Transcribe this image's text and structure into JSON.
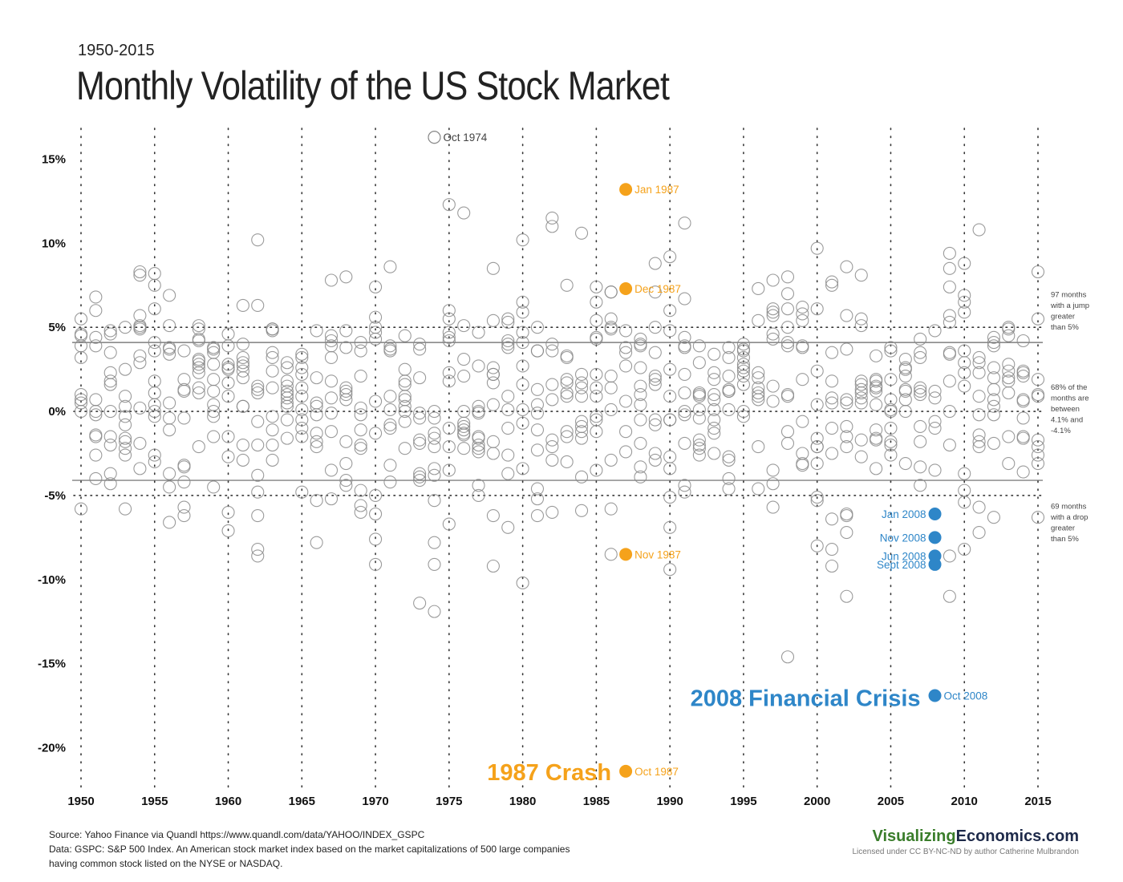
{
  "header": {
    "subtitle": "1950-2015",
    "title": "Monthly Volatility of the US Stock Market"
  },
  "chart_data": {
    "type": "scatter",
    "title": "Monthly Volatility of the US Stock Market",
    "subtitle": "1950-2015",
    "xlim": [
      1950,
      2015
    ],
    "ylim": [
      -22.5,
      16.5
    ],
    "x_ticks": [
      {
        "value": 1950,
        "label": "1950"
      },
      {
        "value": 1955,
        "label": "1955"
      },
      {
        "value": 1960,
        "label": "1960"
      },
      {
        "value": 1965,
        "label": "1965"
      },
      {
        "value": 1970,
        "label": "1970"
      },
      {
        "value": 1975,
        "label": "1975"
      },
      {
        "value": 1980,
        "label": "1980"
      },
      {
        "value": 1985,
        "label": "1985"
      },
      {
        "value": 1990,
        "label": "1990"
      },
      {
        "value": 1995,
        "label": "1995"
      },
      {
        "value": 2000,
        "label": "2000"
      },
      {
        "value": 2005,
        "label": "2005"
      },
      {
        "value": 2010,
        "label": "2010"
      },
      {
        "value": 2015,
        "label": "2015"
      }
    ],
    "y_ticks": [
      {
        "value": 15,
        "label": "15%"
      },
      {
        "value": 10,
        "label": "10%"
      },
      {
        "value": 5,
        "label": "5%"
      },
      {
        "value": 0,
        "label": "0%"
      },
      {
        "value": -5,
        "label": "-5%"
      },
      {
        "value": -10,
        "label": "-10%"
      },
      {
        "value": -15,
        "label": "-15%"
      },
      {
        "value": -20,
        "label": "-20%"
      }
    ],
    "grid": {
      "vertical": "dotted",
      "horizontal_dotted": [
        5,
        0,
        -5
      ],
      "horizontal_solid": [
        4.1,
        -4.1
      ]
    },
    "colors": {
      "default": "#888888",
      "crash_1987": "#f5a21b",
      "crisis_2008": "#2e86c8",
      "axis_text": "#111111"
    },
    "band_notes": [
      {
        "y": 6.8,
        "lines": [
          "97 months",
          "with a jump",
          "greater",
          "than 5%"
        ]
      },
      {
        "y": 1.3,
        "lines": [
          "68% of the",
          "months are",
          "between",
          "4.1% and",
          "-4.1%"
        ]
      },
      {
        "y": -5.8,
        "lines": [
          "69 months",
          "with a drop",
          "greater",
          "than 5%"
        ]
      }
    ],
    "annotations": [
      {
        "text": "1987 Crash",
        "x": 1987,
        "y": -21.4,
        "color": "#f5a21b"
      },
      {
        "text": "2008 Financial Crisis",
        "x": 2008,
        "y": -17.0,
        "color": "#2e86c8"
      }
    ],
    "highlighted_points": [
      {
        "x": 1974,
        "y": 16.3,
        "label": "Oct 1974",
        "group": "default",
        "label_side": "right"
      },
      {
        "x": 1987,
        "y": 13.2,
        "label": "Jan 1987",
        "group": "crash_1987",
        "label_side": "right"
      },
      {
        "x": 1987,
        "y": 7.3,
        "label": "Dec 1987",
        "group": "crash_1987",
        "label_side": "right"
      },
      {
        "x": 1987,
        "y": -8.5,
        "label": "Nov 1987",
        "group": "crash_1987",
        "label_side": "right"
      },
      {
        "x": 1987,
        "y": -21.4,
        "label": "Oct 1987",
        "group": "crash_1987",
        "label_side": "right"
      },
      {
        "x": 2008,
        "y": -6.1,
        "label": "Jan 2008",
        "group": "crisis_2008",
        "label_side": "left"
      },
      {
        "x": 2008,
        "y": -7.5,
        "label": "Nov 2008",
        "group": "crisis_2008",
        "label_side": "left"
      },
      {
        "x": 2008,
        "y": -8.6,
        "label": "Jun 2008",
        "group": "crisis_2008",
        "label_side": "left"
      },
      {
        "x": 2008,
        "y": -9.1,
        "label": "Sept 2008",
        "group": "crisis_2008",
        "label_side": "left"
      },
      {
        "x": 2008,
        "y": -16.9,
        "label": "Oct 2008",
        "group": "crisis_2008",
        "label_side": "right"
      }
    ],
    "series": [
      {
        "x": 1950,
        "y": [
          5.5,
          4.5,
          3.9,
          3.2,
          1.0,
          0.5,
          0.0,
          -5.8,
          4.6,
          0.7
        ]
      },
      {
        "x": 1951,
        "y": [
          6.8,
          6.0,
          4.4,
          3.9,
          0.7,
          -0.2,
          -1.4,
          -1.5,
          -2.6,
          -4.0,
          0.0
        ]
      },
      {
        "x": 1952,
        "y": [
          4.8,
          4.6,
          3.5,
          2.3,
          1.8,
          0.0,
          -1.5,
          -2.0,
          -3.7,
          -4.3,
          1.6
        ]
      },
      {
        "x": 1953,
        "y": [
          5.0,
          2.5,
          0.9,
          0.3,
          -0.3,
          -0.8,
          -1.8,
          -2.2,
          -2.6,
          -5.8,
          -1.6
        ]
      },
      {
        "x": 1954,
        "y": [
          8.3,
          8.1,
          5.7,
          5.1,
          4.9,
          3.3,
          2.9,
          0.2,
          -1.9,
          -3.4,
          5.0
        ]
      },
      {
        "x": 1955,
        "y": [
          8.2,
          7.5,
          6.1,
          4.1,
          3.6,
          1.8,
          0.4,
          0.0,
          -0.3,
          -2.6,
          -3.0,
          1.1
        ]
      },
      {
        "x": 1956,
        "y": [
          6.9,
          5.1,
          3.7,
          3.4,
          0.5,
          -1.1,
          -3.7,
          -4.5,
          -6.6,
          3.8,
          -0.4
        ]
      },
      {
        "x": 1957,
        "y": [
          3.6,
          1.9,
          1.3,
          -0.4,
          -3.2,
          -3.3,
          -4.2,
          -5.7,
          -6.2,
          1.2
        ]
      },
      {
        "x": 1958,
        "y": [
          5.1,
          4.3,
          3.1,
          2.6,
          2.3,
          1.4,
          -2.1,
          4.9,
          4.2,
          2.8,
          3.0,
          1.1
        ]
      },
      {
        "x": 1959,
        "y": [
          3.8,
          3.5,
          2.8,
          1.9,
          1.2,
          0.4,
          0.0,
          -0.3,
          -1.5,
          -4.5,
          3.7
        ]
      },
      {
        "x": 1960,
        "y": [
          4.6,
          3.9,
          2.8,
          2.5,
          1.7,
          0.9,
          -1.5,
          -2.7,
          -6.0,
          -7.1,
          2.6
        ]
      },
      {
        "x": 1961,
        "y": [
          6.3,
          4.0,
          3.2,
          2.7,
          2.4,
          2.0,
          0.3,
          -2.0,
          -2.9,
          0.3,
          2.9
        ]
      },
      {
        "x": 1962,
        "y": [
          10.2,
          6.3,
          1.5,
          1.1,
          -0.6,
          -2.0,
          -3.8,
          -4.8,
          -6.2,
          -8.2,
          -8.6,
          1.3
        ]
      },
      {
        "x": 1963,
        "y": [
          4.9,
          4.9,
          3.5,
          3.2,
          2.4,
          1.4,
          -0.3,
          -1.1,
          -2.0,
          -2.9,
          4.8
        ]
      },
      {
        "x": 1964,
        "y": [
          2.9,
          2.6,
          1.8,
          1.5,
          1.2,
          0.8,
          0.5,
          0.3,
          -0.5,
          -1.6,
          1.0
        ]
      },
      {
        "x": 1965,
        "y": [
          3.4,
          3.2,
          2.6,
          2.2,
          1.4,
          0.9,
          -0.5,
          -1.0,
          -1.5,
          -4.8,
          0.1
        ]
      },
      {
        "x": 1966,
        "y": [
          4.8,
          2.0,
          0.3,
          -0.2,
          -1.3,
          -1.8,
          -2.1,
          -5.3,
          -7.8,
          0.5
        ]
      },
      {
        "x": 1967,
        "y": [
          7.8,
          4.5,
          4.2,
          3.9,
          3.2,
          1.8,
          0.8,
          -0.1,
          -1.2,
          -3.5,
          -5.2
        ]
      },
      {
        "x": 1968,
        "y": [
          8.0,
          4.8,
          3.8,
          1.2,
          1.0,
          0.7,
          -1.8,
          -3.1,
          -4.1,
          -4.4,
          1.4
        ]
      },
      {
        "x": 1969,
        "y": [
          4.1,
          3.6,
          2.1,
          0.2,
          -0.2,
          -1.1,
          -2.0,
          -4.7,
          -5.6,
          -6.0,
          -2.2
        ]
      },
      {
        "x": 1970,
        "y": [
          7.4,
          5.6,
          5.0,
          4.7,
          4.3,
          0.6,
          -1.3,
          -5.0,
          -7.6,
          -9.1,
          -6.1
        ]
      },
      {
        "x": 1971,
        "y": [
          8.6,
          3.9,
          3.6,
          3.7,
          0.9,
          -0.8,
          -1.0,
          -4.2,
          -3.2,
          0.1
        ]
      },
      {
        "x": 1972,
        "y": [
          4.5,
          2.5,
          1.8,
          1.6,
          0.7,
          0.3,
          0.0,
          -0.6,
          -2.2,
          0.9
        ]
      },
      {
        "x": 1973,
        "y": [
          4.0,
          3.7,
          2.0,
          -0.1,
          -0.4,
          -1.7,
          -1.9,
          -3.7,
          -3.9,
          -4.1,
          -11.4
        ]
      },
      {
        "x": 1974,
        "y": [
          16.3,
          0.0,
          -0.4,
          -1.3,
          -1.6,
          -2.1,
          -3.4,
          -3.8,
          -5.3,
          -7.8,
          -9.1,
          -11.9
        ]
      },
      {
        "x": 1975,
        "y": [
          12.3,
          6.0,
          5.5,
          4.7,
          4.4,
          2.3,
          1.8,
          -1.0,
          -2.1,
          -3.5,
          -6.7,
          4.2
        ]
      },
      {
        "x": 1976,
        "y": [
          11.8,
          5.1,
          3.1,
          2.1,
          -0.7,
          -0.9,
          -1.1,
          -1.4,
          -2.2,
          0.0,
          -1.3
        ]
      },
      {
        "x": 1977,
        "y": [
          4.7,
          2.7,
          0.3,
          -0.1,
          -1.5,
          -1.6,
          -2.0,
          -2.2,
          -4.4,
          -5.0,
          0.0,
          -2.4
        ]
      },
      {
        "x": 1978,
        "y": [
          8.5,
          5.4,
          2.6,
          2.2,
          1.7,
          0.4,
          -1.8,
          -2.5,
          -6.2,
          -9.2,
          2.2
        ]
      },
      {
        "x": 1979,
        "y": [
          5.5,
          4.0,
          3.8,
          5.3,
          0.9,
          0.1,
          -1.0,
          -2.6,
          -3.7,
          -6.9,
          4.2
        ]
      },
      {
        "x": 1980,
        "y": [
          10.2,
          6.5,
          4.7,
          4.1,
          2.7,
          1.6,
          0.1,
          -0.7,
          -3.4,
          -10.2,
          5.9
        ]
      },
      {
        "x": 1981,
        "y": [
          5.0,
          3.6,
          1.3,
          0.4,
          -0.1,
          -1.1,
          -2.3,
          -4.6,
          -5.2,
          -6.2,
          3.6
        ]
      },
      {
        "x": 1982,
        "y": [
          11.5,
          11.0,
          4.0,
          3.6,
          1.6,
          0.7,
          -1.7,
          -2.1,
          -6.0,
          -2.9
        ]
      },
      {
        "x": 1983,
        "y": [
          7.5,
          3.3,
          3.2,
          1.9,
          1.1,
          0.9,
          -1.2,
          -1.5,
          -3.0,
          1.7
        ]
      },
      {
        "x": 1984,
        "y": [
          10.6,
          2.2,
          1.7,
          1.4,
          0.9,
          -0.9,
          -1.2,
          -1.6,
          -3.9,
          -5.9,
          -0.6
        ]
      },
      {
        "x": 1985,
        "y": [
          7.4,
          6.5,
          5.4,
          4.4,
          4.3,
          1.4,
          0.9,
          -0.3,
          -0.5,
          -1.2,
          -3.5,
          2.2
        ]
      },
      {
        "x": 1986,
        "y": [
          7.1,
          7.1,
          5.5,
          5.0,
          4.9,
          2.1,
          1.4,
          0.1,
          -2.9,
          -5.8,
          -8.5
        ]
      },
      {
        "x": 1987,
        "y": [
          4.8,
          3.8,
          2.7,
          0.6,
          -1.2,
          -2.4,
          3.5
        ]
      },
      {
        "x": 1988,
        "y": [
          4.3,
          4.0,
          3.9,
          2.6,
          1.5,
          1.0,
          0.4,
          -0.5,
          -1.9,
          -3.3,
          -3.9
        ]
      },
      {
        "x": 1989,
        "y": [
          8.8,
          7.1,
          5.0,
          3.5,
          2.1,
          1.9,
          1.6,
          -0.5,
          -0.8,
          -2.9,
          -2.5
        ]
      },
      {
        "x": 1990,
        "y": [
          9.2,
          6.0,
          4.8,
          2.5,
          0.9,
          -0.5,
          -0.5,
          -2.7,
          -5.1,
          -6.9,
          -9.4,
          -3.4
        ]
      },
      {
        "x": 1991,
        "y": [
          11.2,
          6.7,
          4.4,
          3.9,
          2.2,
          1.1,
          0.0,
          -0.2,
          -1.9,
          -4.4,
          -4.8,
          3.8
        ]
      },
      {
        "x": 1992,
        "y": [
          3.9,
          2.9,
          1.1,
          1.0,
          0.1,
          -0.4,
          -1.7,
          -2.0,
          -2.2,
          -2.6,
          0.9
        ]
      },
      {
        "x": 1993,
        "y": [
          3.4,
          2.3,
          1.0,
          0.7,
          0.1,
          -0.5,
          -1.0,
          -1.3,
          -2.5,
          1.9
        ]
      },
      {
        "x": 1994,
        "y": [
          3.8,
          3.2,
          1.3,
          1.2,
          1.2,
          0.1,
          -2.7,
          -2.9,
          -4.0,
          -4.6,
          2.1
        ]
      },
      {
        "x": 1995,
        "y": [
          4.0,
          3.6,
          3.2,
          2.8,
          2.6,
          2.4,
          2.1,
          1.6,
          0.0,
          -0.3,
          3.7
        ]
      },
      {
        "x": 1996,
        "y": [
          7.3,
          5.4,
          2.3,
          2.0,
          1.4,
          0.9,
          0.7,
          -2.1,
          -4.6,
          1.1
        ]
      },
      {
        "x": 1997,
        "y": [
          7.8,
          6.1,
          5.9,
          5.7,
          4.3,
          0.6,
          1.5,
          -3.5,
          -4.3,
          -5.7,
          4.6
        ]
      },
      {
        "x": 1998,
        "y": [
          8.0,
          7.0,
          5.0,
          4.1,
          1.0,
          0.9,
          -1.2,
          -1.9,
          -14.6,
          6.1,
          3.9
        ]
      },
      {
        "x": 1999,
        "y": [
          6.2,
          5.8,
          5.4,
          3.8,
          1.9,
          -0.6,
          -2.5,
          -3.2,
          -3.1,
          3.9
        ]
      },
      {
        "x": 2000,
        "y": [
          9.7,
          6.1,
          2.4,
          0.4,
          -1.6,
          -2.1,
          -3.1,
          -5.1,
          -5.3,
          -8.0,
          -2.1
        ]
      },
      {
        "x": 2001,
        "y": [
          7.5,
          3.5,
          1.8,
          0.8,
          0.5,
          -1.0,
          -2.5,
          -6.4,
          -8.2,
          -9.2,
          7.7
        ]
      },
      {
        "x": 2002,
        "y": [
          8.6,
          5.7,
          3.7,
          0.5,
          -0.9,
          -1.5,
          -2.1,
          -6.1,
          -6.2,
          -7.2,
          -11.0,
          0.7
        ]
      },
      {
        "x": 2003,
        "y": [
          8.1,
          5.5,
          5.1,
          1.8,
          1.6,
          1.1,
          0.8,
          0.5,
          -1.7,
          -2.7,
          1.3
        ]
      },
      {
        "x": 2004,
        "y": [
          3.3,
          1.9,
          1.5,
          1.4,
          1.2,
          0.4,
          -1.1,
          -1.6,
          -1.7,
          -3.4,
          1.8
        ]
      },
      {
        "x": 2005,
        "y": [
          3.8,
          3.6,
          1.9,
          0.7,
          0.0,
          -1.0,
          -1.8,
          -2.0,
          -2.6,
          0.1
        ]
      },
      {
        "x": 2006,
        "y": [
          3.1,
          2.6,
          2.1,
          1.2,
          0.7,
          0.0,
          -3.1,
          2.5,
          1.3
        ]
      },
      {
        "x": 2007,
        "y": [
          4.3,
          3.5,
          1.4,
          1.2,
          1.0,
          -0.9,
          -1.8,
          -3.3,
          -4.4,
          3.2
        ]
      },
      {
        "x": 2008,
        "y": [
          4.8,
          1.2,
          0.8,
          -0.6,
          -1.0,
          -3.5
        ]
      },
      {
        "x": 2009,
        "y": [
          9.4,
          8.5,
          7.4,
          5.7,
          5.3,
          3.5,
          3.4,
          1.8,
          0.0,
          -2.0,
          -8.6,
          -11.0
        ]
      },
      {
        "x": 2010,
        "y": [
          8.8,
          6.9,
          6.5,
          5.9,
          3.6,
          2.9,
          1.5,
          -3.7,
          -4.7,
          -5.4,
          -8.2,
          2.3
        ]
      },
      {
        "x": 2011,
        "y": [
          10.8,
          3.2,
          2.9,
          2.3,
          0.9,
          -0.2,
          -1.4,
          -1.8,
          -2.1,
          -5.7,
          -7.2
        ]
      },
      {
        "x": 2012,
        "y": [
          4.4,
          4.1,
          3.9,
          2.0,
          1.3,
          0.7,
          0.3,
          -0.2,
          -1.9,
          -6.3,
          2.6
        ]
      },
      {
        "x": 2013,
        "y": [
          5.0,
          4.9,
          2.8,
          2.4,
          2.0,
          1.8,
          1.1,
          -1.5,
          -3.1,
          4.5
        ]
      },
      {
        "x": 2014,
        "y": [
          4.2,
          2.4,
          2.3,
          2.1,
          0.7,
          0.6,
          -0.4,
          -1.5,
          -1.6,
          -3.6
        ]
      },
      {
        "x": 2015,
        "y": [
          8.3,
          5.5,
          1.9,
          1.0,
          0.9,
          -1.7,
          -2.1,
          -2.6,
          -3.1,
          -6.3
        ]
      }
    ]
  },
  "footer": {
    "source_line": "Source:  Yahoo Finance via Quandl https://www.quandl.com/data/YAHOO/INDEX_GSPC",
    "data_line1": "Data: GSPC: S&P 500 Index. An American stock market index based on the market capitalizations of 500 large companies",
    "data_line2": "having common stock listed on the NYSE or NASDAQ.",
    "brand_part1": "Visualizing",
    "brand_part2": "Economics.com",
    "license": "Licensed under CC BY-NC-ND by author Catherine Mulbrandon"
  }
}
